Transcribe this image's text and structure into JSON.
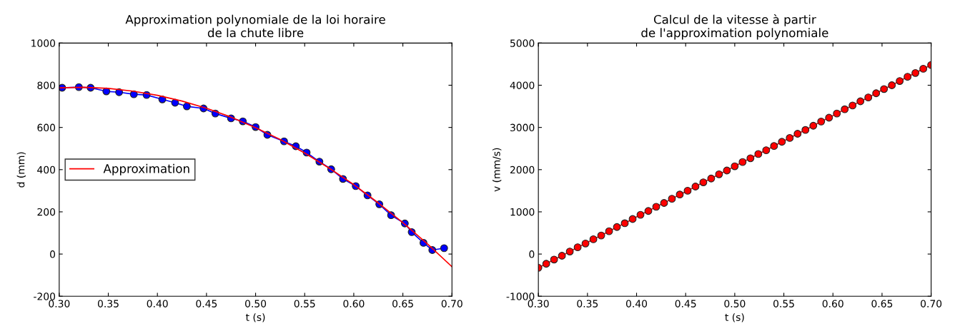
{
  "chart_data": [
    {
      "type": "line",
      "title": "Approximation polynomiale de la loi horaire\nde la chute libre",
      "xlabel": "t (s)",
      "ylabel": "d (mm)",
      "xlim": [
        0.3,
        0.7
      ],
      "xticks": [
        {
          "value": 0.3,
          "label": "0.30"
        },
        0.35,
        {
          "value": 0.4,
          "label": "0.40"
        },
        0.45,
        {
          "value": 0.5,
          "label": "0.50"
        },
        0.55,
        {
          "value": 0.6,
          "label": "0.60"
        },
        0.65,
        {
          "value": 0.7,
          "label": "0.70"
        }
      ],
      "ylim": [
        -200,
        1000
      ],
      "yticks": [
        -200,
        0,
        200,
        400,
        600,
        800,
        1000
      ],
      "grid": false,
      "legend": "left",
      "series": [
        {
          "color": "#0000ff",
          "marker": "circle",
          "x": [
            0.303,
            0.32,
            0.332,
            0.348,
            0.361,
            0.376,
            0.389,
            0.405,
            0.418,
            0.43,
            0.447,
            0.459,
            0.475,
            0.487,
            0.5,
            0.512,
            0.529,
            0.541,
            0.552,
            0.565,
            0.577,
            0.589,
            0.602,
            0.614,
            0.626,
            0.638,
            0.652,
            0.659,
            0.671,
            0.68,
            0.692
          ],
          "values": [
            788,
            791,
            788,
            771,
            767,
            757,
            754,
            733,
            717,
            700,
            690,
            666,
            643,
            629,
            602,
            565,
            534,
            511,
            481,
            438,
            402,
            356,
            322,
            278,
            236,
            184,
            145,
            104,
            53,
            19,
            28
          ]
        },
        {
          "name": "Approximation",
          "color": "#ff0000",
          "marker": "none",
          "x": [
            0.3,
            0.325,
            0.35,
            0.375,
            0.4,
            0.425,
            0.45,
            0.475,
            0.5,
            0.525,
            0.55,
            0.575,
            0.6,
            0.625,
            0.65,
            0.675,
            0.7
          ],
          "values": [
            788,
            790,
            785,
            772,
            752,
            725,
            691,
            649,
            599,
            543,
            479,
            407,
            329,
            242,
            149,
            48,
            -60
          ]
        }
      ]
    },
    {
      "type": "line",
      "title": "Calcul de la vitesse à partir\nde l'approximation polynomiale",
      "xlabel": "t (s)",
      "ylabel": "v (mm/s)",
      "xlim": [
        0.3,
        0.7
      ],
      "xticks": [
        {
          "value": 0.3,
          "label": "0.30"
        },
        0.35,
        {
          "value": 0.4,
          "label": "0.40"
        },
        0.45,
        {
          "value": 0.5,
          "label": "0.50"
        },
        0.55,
        {
          "value": 0.6,
          "label": "0.60"
        },
        0.65,
        {
          "value": 0.7,
          "label": "0.70"
        }
      ],
      "ylim": [
        -1000,
        5000
      ],
      "yticks": [
        -1000,
        0,
        1000,
        2000,
        3000,
        4000,
        5000
      ],
      "grid": false,
      "legend": false,
      "series": [
        {
          "color": "#ff0000",
          "marker": "circle",
          "x": [
            0.3,
            0.308,
            0.316,
            0.324,
            0.332,
            0.34,
            0.348,
            0.356,
            0.364,
            0.372,
            0.38,
            0.388,
            0.396,
            0.404,
            0.412,
            0.42,
            0.428,
            0.436,
            0.444,
            0.452,
            0.46,
            0.468,
            0.476,
            0.484,
            0.492,
            0.5,
            0.508,
            0.516,
            0.524,
            0.532,
            0.54,
            0.548,
            0.556,
            0.564,
            0.572,
            0.58,
            0.588,
            0.596,
            0.604,
            0.612,
            0.62,
            0.628,
            0.636,
            0.644,
            0.652,
            0.66,
            0.668,
            0.676,
            0.684,
            0.692,
            0.7
          ],
          "values": [
            -325,
            -230,
            -130,
            -40,
            60,
            160,
            250,
            350,
            440,
            540,
            640,
            730,
            830,
            930,
            1020,
            1120,
            1210,
            1310,
            1410,
            1500,
            1600,
            1700,
            1790,
            1890,
            1980,
            2080,
            2180,
            2270,
            2370,
            2460,
            2560,
            2660,
            2750,
            2850,
            2940,
            3040,
            3140,
            3230,
            3330,
            3430,
            3520,
            3620,
            3710,
            3810,
            3910,
            4000,
            4100,
            4200,
            4290,
            4390,
            4480
          ]
        }
      ]
    }
  ]
}
